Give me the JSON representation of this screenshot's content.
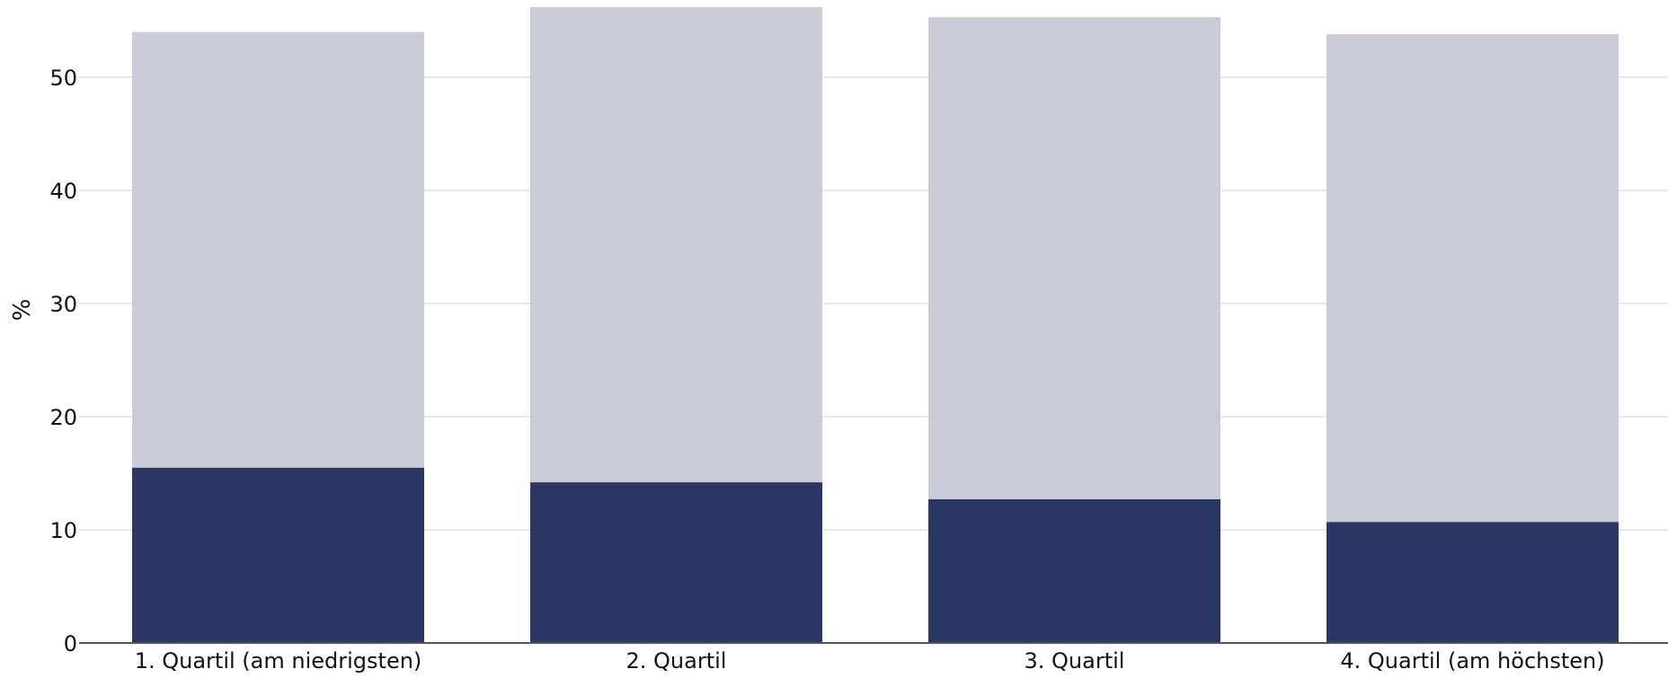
{
  "chart_data": {
    "type": "bar",
    "stacked": true,
    "categories": [
      "1. Quartil (am niedrigsten)",
      "2. Quartil",
      "3. Quartil",
      "4. Quartil (am höchsten)"
    ],
    "series": [
      {
        "values": [
          15.5,
          14.2,
          12.7,
          10.7
        ],
        "color": "#2a3663"
      },
      {
        "values": [
          38.5,
          42.0,
          42.6,
          43.1
        ],
        "color": "#c9cbd8"
      }
    ],
    "ylabel": "%",
    "ylim": [
      0,
      56
    ],
    "yticks": [
      0,
      10,
      20,
      30,
      40,
      50
    ],
    "grid": true,
    "legend": "none"
  }
}
